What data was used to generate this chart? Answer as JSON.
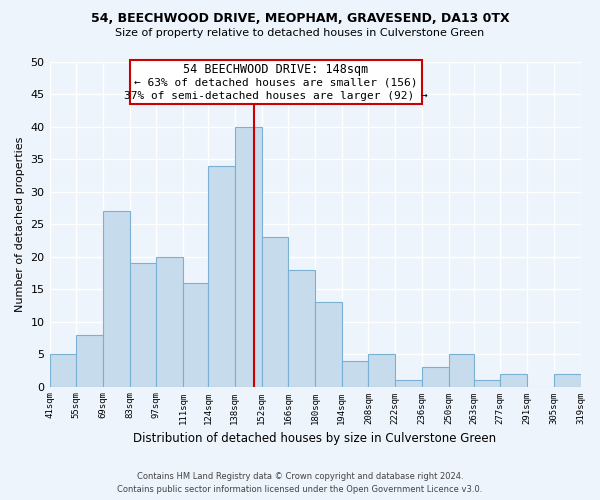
{
  "title": "54, BEECHWOOD DRIVE, MEOPHAM, GRAVESEND, DA13 0TX",
  "subtitle": "Size of property relative to detached houses in Culverstone Green",
  "xlabel": "Distribution of detached houses by size in Culverstone Green",
  "ylabel": "Number of detached properties",
  "bar_edges": [
    41,
    55,
    69,
    83,
    97,
    111,
    124,
    138,
    152,
    166,
    180,
    194,
    208,
    222,
    236,
    250,
    263,
    277,
    291,
    305,
    319
  ],
  "bar_heights": [
    5,
    8,
    27,
    19,
    20,
    16,
    34,
    40,
    23,
    18,
    13,
    4,
    5,
    1,
    3,
    5,
    1,
    2,
    0,
    2
  ],
  "bar_color": "#c6dcec",
  "bar_edgecolor": "#7ab0d4",
  "reference_line_x": 148,
  "reference_line_color": "#cc0000",
  "annotation_title": "54 BEECHWOOD DRIVE: 148sqm",
  "annotation_line1": "← 63% of detached houses are smaller (156)",
  "annotation_line2": "37% of semi-detached houses are larger (92) →",
  "annotation_box_edgecolor": "#cc0000",
  "ylim": [
    0,
    50
  ],
  "yticks": [
    0,
    5,
    10,
    15,
    20,
    25,
    30,
    35,
    40,
    45,
    50
  ],
  "tick_labels": [
    "41sqm",
    "55sqm",
    "69sqm",
    "83sqm",
    "97sqm",
    "111sqm",
    "124sqm",
    "138sqm",
    "152sqm",
    "166sqm",
    "180sqm",
    "194sqm",
    "208sqm",
    "222sqm",
    "236sqm",
    "250sqm",
    "263sqm",
    "277sqm",
    "291sqm",
    "305sqm",
    "319sqm"
  ],
  "footer_line1": "Contains HM Land Registry data © Crown copyright and database right 2024.",
  "footer_line2": "Contains public sector information licensed under the Open Government Licence v3.0.",
  "background_color": "#eef4fb"
}
